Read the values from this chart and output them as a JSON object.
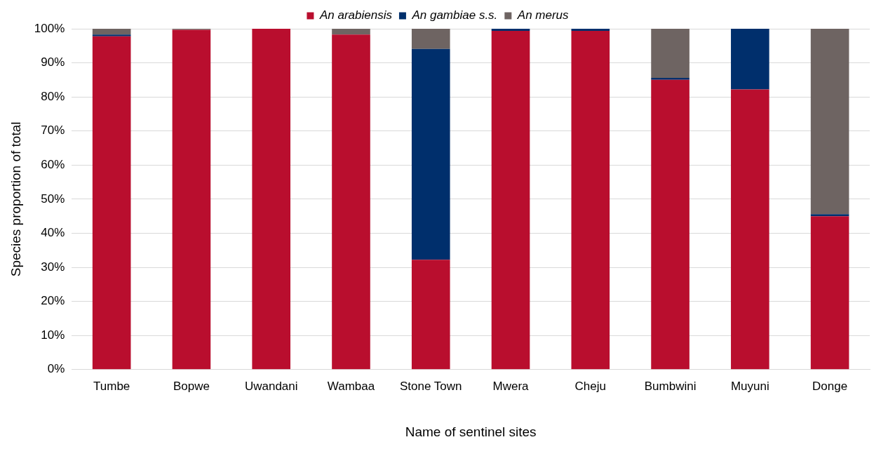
{
  "chart_data": {
    "type": "bar",
    "stacked": true,
    "xlabel": "Name of sentinel sites",
    "ylabel": "Species proportion of total",
    "categories": [
      "Tumbe",
      "Bopwe",
      "Uwandani",
      "Wambaa",
      "Stone Town",
      "Mwera",
      "Cheju",
      "Bumbwini",
      "Muyuni",
      "Donge"
    ],
    "series": [
      {
        "name": "An arabiensis",
        "color": "#b90e2e",
        "values": [
          97.8,
          99.7,
          100,
          98.3,
          32.2,
          99.4,
          99.4,
          85,
          82.2,
          45
        ]
      },
      {
        "name": "An gambiae s.s.",
        "color": "#002f6c",
        "values": [
          0.5,
          0,
          0,
          0,
          61.9,
          0.6,
          0.6,
          0.6,
          17.8,
          0.6
        ]
      },
      {
        "name": "An merus",
        "color": "#6e6462",
        "values": [
          1.7,
          0.3,
          0,
          1.7,
          5.9,
          0,
          0,
          14.4,
          0,
          54.4
        ]
      }
    ],
    "ylim": [
      0,
      100
    ],
    "yticks": [
      {
        "value": 0,
        "label": "0%"
      },
      {
        "value": 10,
        "label": "10%"
      },
      {
        "value": 20,
        "label": "20%"
      },
      {
        "value": 30,
        "label": "30%"
      },
      {
        "value": 40,
        "label": "40%"
      },
      {
        "value": 50,
        "label": "50%"
      },
      {
        "value": 60,
        "label": "60%"
      },
      {
        "value": 70,
        "label": "70%"
      },
      {
        "value": 80,
        "label": "80%"
      },
      {
        "value": 90,
        "label": "90%"
      },
      {
        "value": 100,
        "label": "100%"
      }
    ],
    "grid": "y",
    "legend": "top"
  }
}
